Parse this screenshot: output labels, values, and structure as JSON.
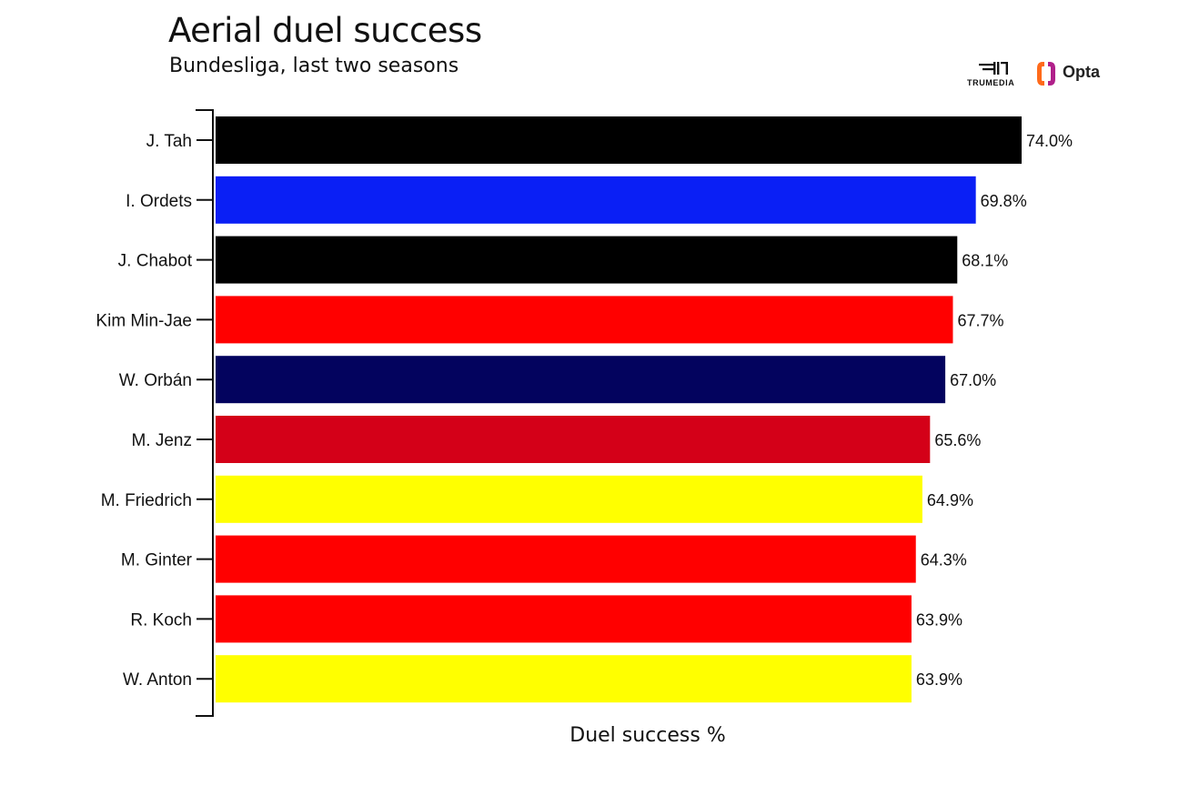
{
  "chart_data": {
    "type": "bar",
    "orientation": "horizontal",
    "title": "Aerial duel success",
    "subtitle": "Bundesliga, last two seasons",
    "xlabel": "Duel success %",
    "ylabel": "",
    "xlim": [
      0,
      74.0
    ],
    "grid": false,
    "legend": "none",
    "categories": [
      "J. Tah",
      "I. Ordets",
      "J. Chabot",
      "Kim Min-Jae",
      "W. Orbán",
      "M. Jenz",
      "M. Friedrich",
      "M. Ginter",
      "R. Koch",
      "W. Anton"
    ],
    "values": [
      74.0,
      69.8,
      68.1,
      67.7,
      67.0,
      65.6,
      64.9,
      64.3,
      63.9,
      63.9
    ],
    "value_labels": [
      "74.0%",
      "69.8%",
      "68.1%",
      "67.7%",
      "67.0%",
      "65.6%",
      "64.9%",
      "64.3%",
      "63.9%",
      "63.9%"
    ],
    "colors": [
      "#000000",
      "#0a1ff5",
      "#000000",
      "#ff0000",
      "#03035e",
      "#d40018",
      "#ffff00",
      "#ff0000",
      "#ff0000",
      "#ffff00"
    ]
  },
  "logos": {
    "trumedia": "TRUMEDIA",
    "opta": "Opta"
  }
}
